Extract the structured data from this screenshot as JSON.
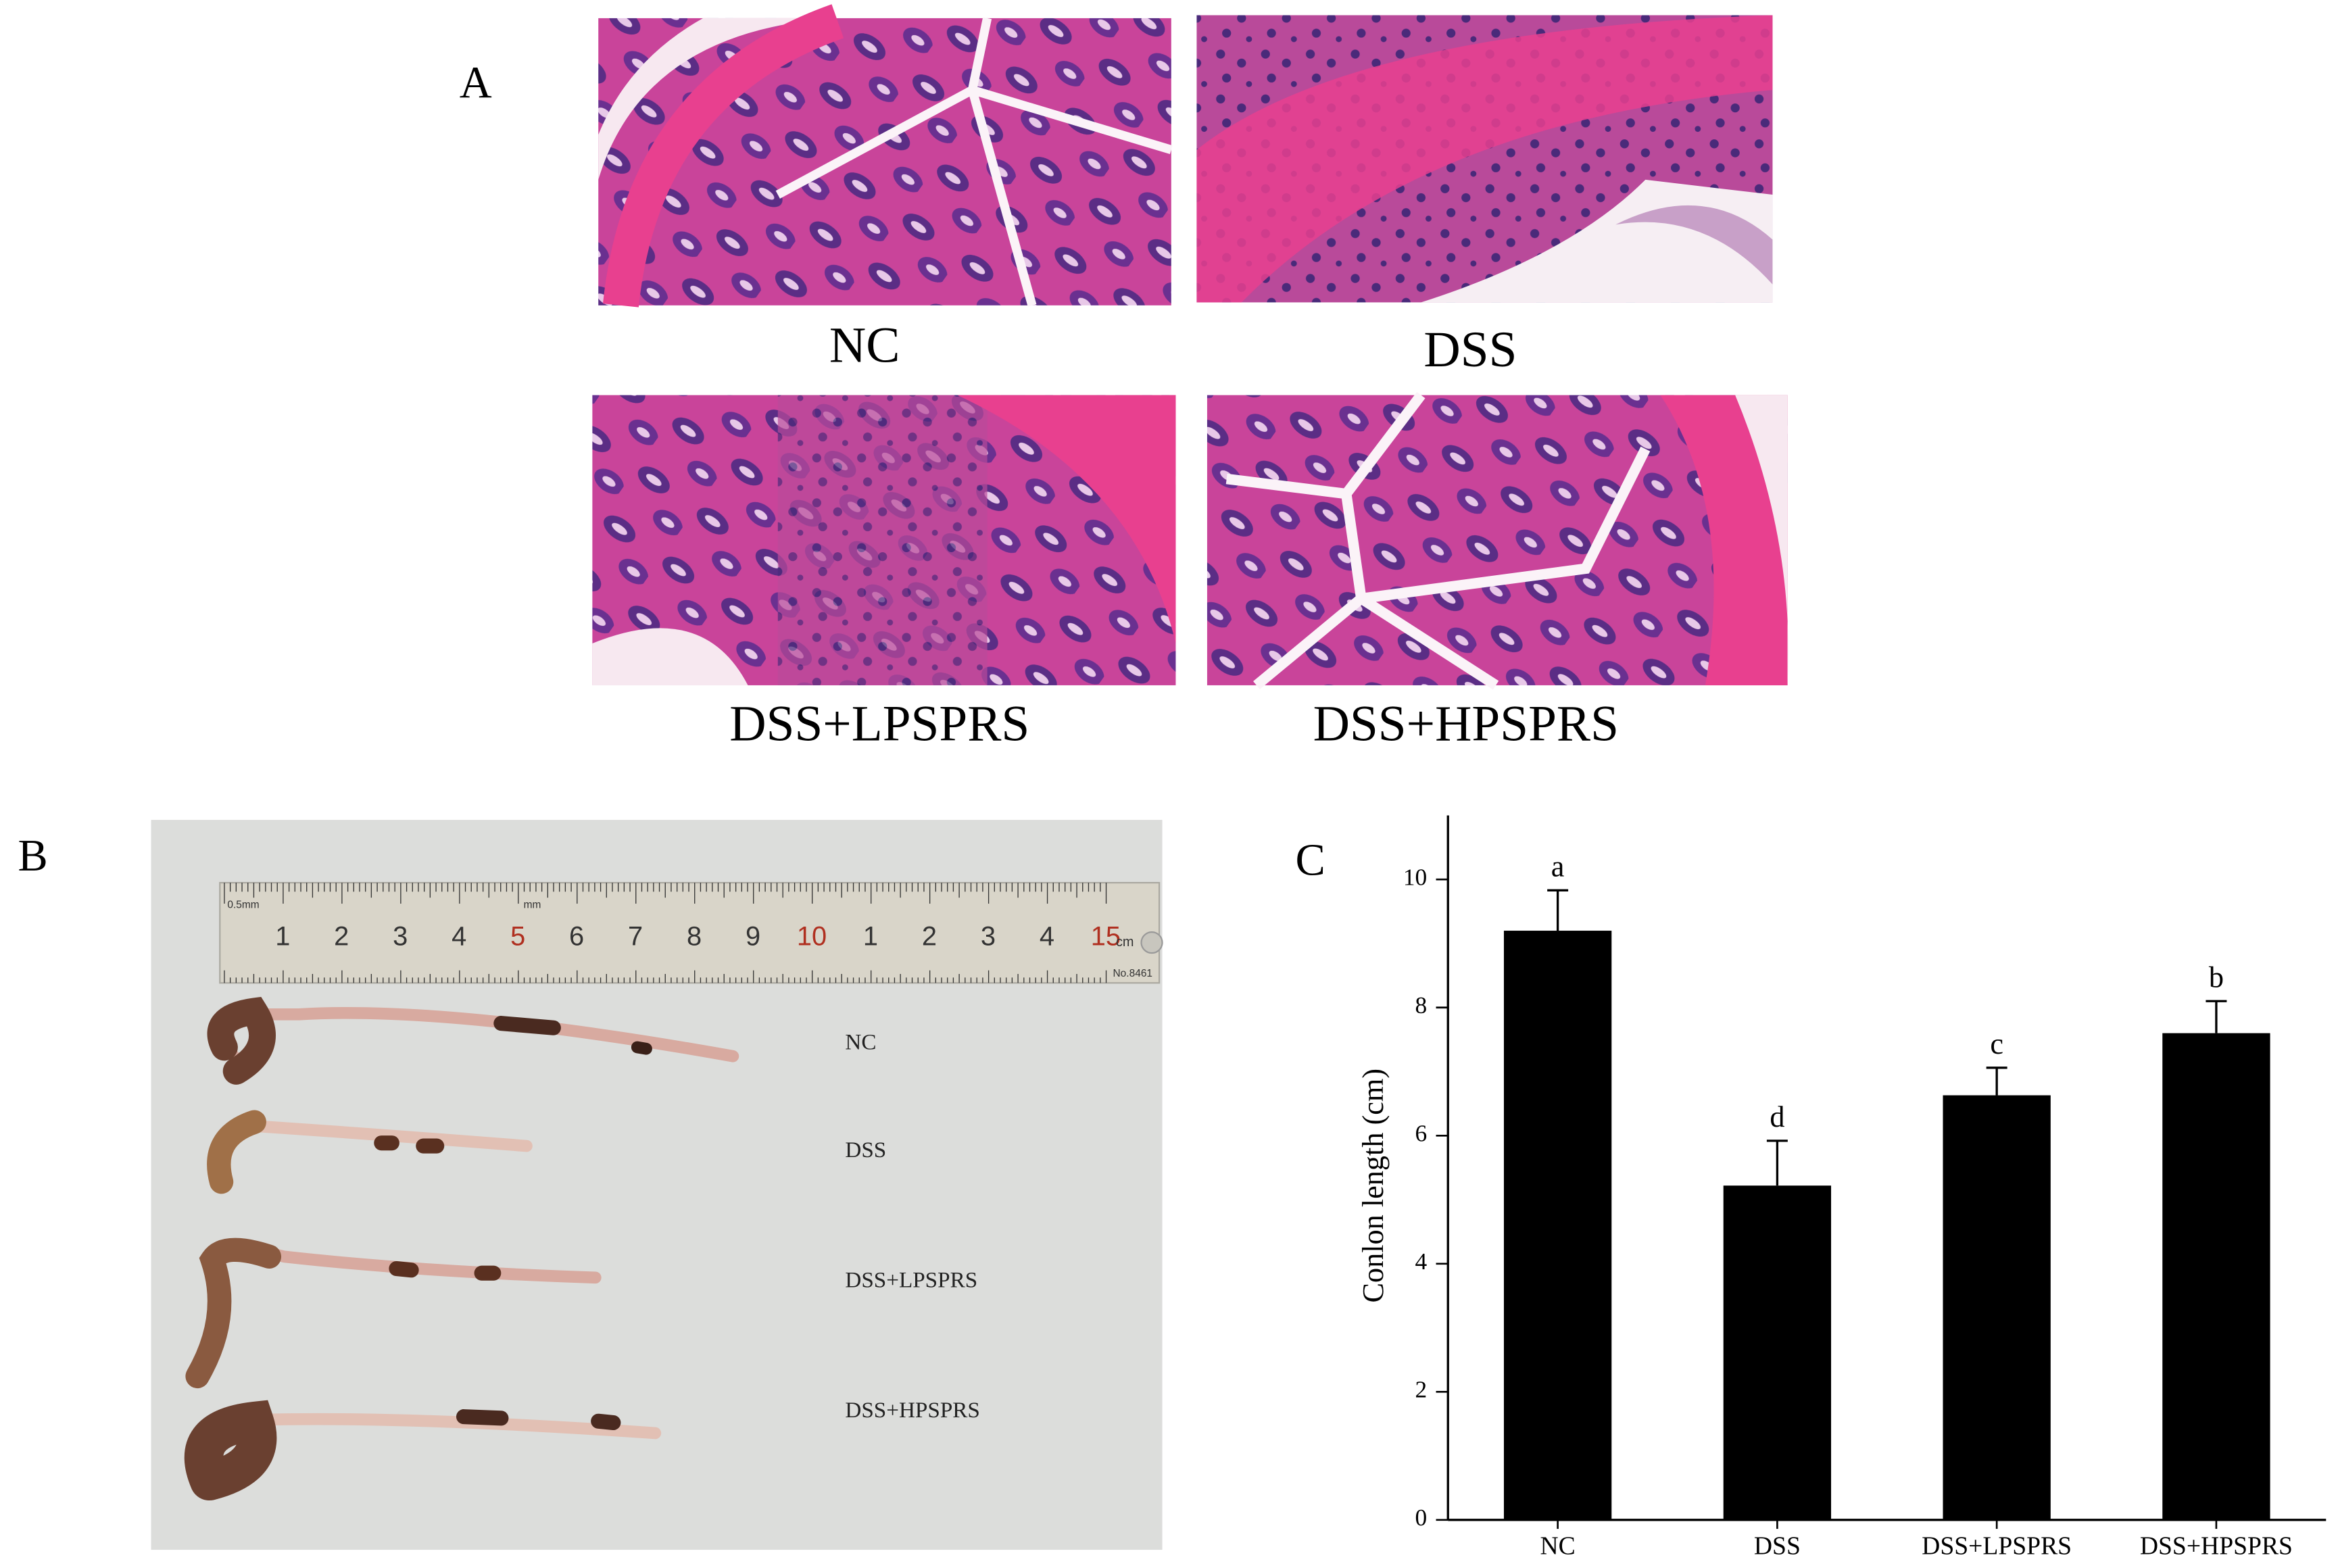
{
  "panel_a": {
    "label": "A",
    "captions": [
      "NC",
      "DSS",
      "DSS+LPSPRS",
      "DSS+HPSPRS"
    ]
  },
  "panel_b": {
    "label": "B",
    "ruler": {
      "labels": [
        "1",
        "2",
        "3",
        "4",
        "5",
        "6",
        "7",
        "8",
        "9",
        "10",
        "1",
        "2",
        "3",
        "4",
        "15"
      ],
      "unit": "cm",
      "small_labels": [
        "0.5mm",
        "mm",
        "No.8461"
      ]
    },
    "samples": [
      "NC",
      "DSS",
      "DSS+LPSPRS",
      "DSS+HPSPRS"
    ]
  },
  "chart_data": {
    "type": "bar",
    "panel_label": "C",
    "ylabel": "Conlon length (cm)",
    "categories": [
      "NC",
      "DSS",
      "DSS+LPSPRS",
      "DSS+HPSPRS"
    ],
    "values": [
      9.2,
      5.22,
      6.63,
      7.6
    ],
    "errors": [
      0.63,
      0.7,
      0.43,
      0.5
    ],
    "annotations": [
      "a",
      "d",
      "c",
      "b"
    ],
    "color": "#000000",
    "ylim": [
      0,
      11
    ],
    "yticks": [
      0,
      2,
      4,
      6,
      8,
      10
    ]
  }
}
